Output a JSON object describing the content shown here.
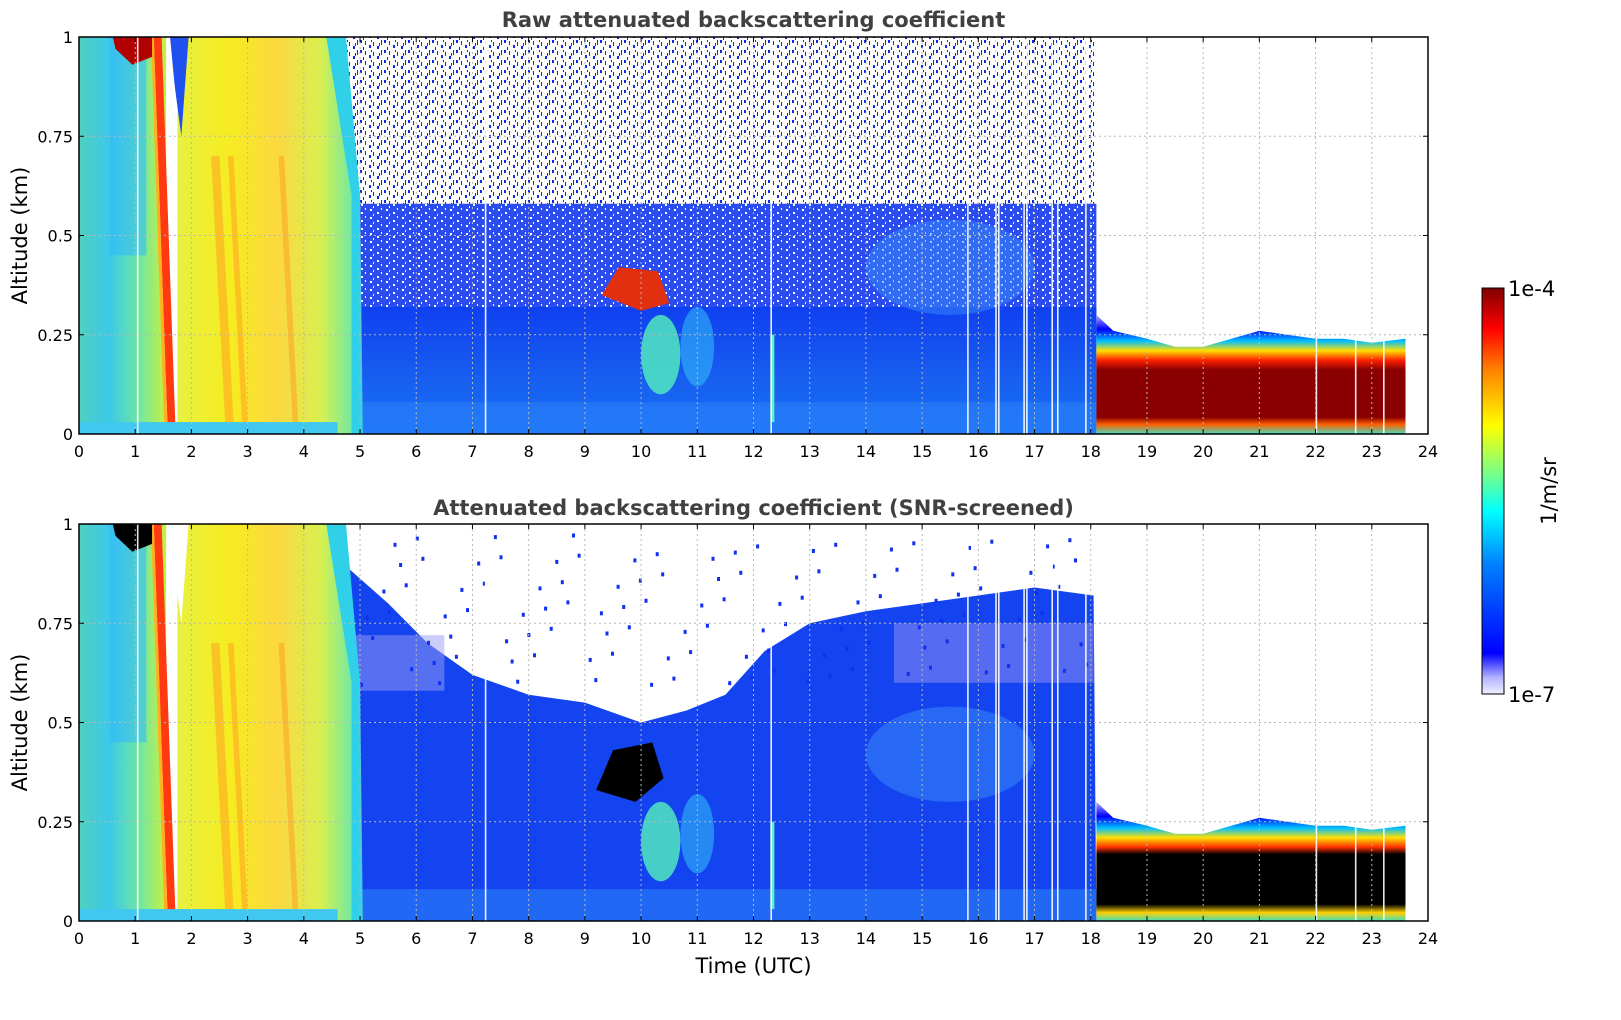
{
  "chart_data": [
    {
      "type": "heatmap",
      "title": "Raw attenuated backscattering coefficient",
      "xlabel": "",
      "ylabel": "Altitude (km)",
      "xlim": [
        0,
        24
      ],
      "ylim": [
        0,
        1
      ],
      "xticks": [
        "0",
        "1",
        "2",
        "3",
        "4",
        "5",
        "6",
        "7",
        "8",
        "9",
        "10",
        "11",
        "12",
        "13",
        "14",
        "15",
        "16",
        "17",
        "18",
        "19",
        "20",
        "21",
        "22",
        "23",
        "24"
      ],
      "yticks": [
        "0",
        "0.25",
        "0.5",
        "0.75",
        "1"
      ],
      "grid": true,
      "colorscale": "log",
      "clim": [
        "1e-7",
        "1e-4"
      ],
      "colorbar_label": "1/m/sr",
      "data_end_time": 23.6,
      "regions": [
        {
          "time_start": 0.0,
          "time_end": 1.5,
          "level": "cyan-green, yellow above 0.7 km"
        },
        {
          "time_start": 1.5,
          "time_end": 1.7,
          "level": "orange-red band descending from 1 km to 0 km"
        },
        {
          "time_start": 1.8,
          "time_end": 4.5,
          "level": "yellow-orange"
        },
        {
          "time_start": 4.5,
          "time_end": 18.1,
          "level": "blue below 0.5 km, noisy above"
        },
        {
          "time_start": 9.2,
          "time_end": 10.5,
          "level": "red feature at 0.35-0.42 km"
        },
        {
          "time_start": 18.1,
          "time_end": 23.6,
          "level": "dark red layer 0.05-0.22 km, no signal above 0.3 km"
        }
      ]
    },
    {
      "type": "heatmap",
      "title": "Attenuated backscattering coefficient (SNR-screened)",
      "xlabel": "Time (UTC)",
      "ylabel": "Altitude (km)",
      "xlim": [
        0,
        24
      ],
      "ylim": [
        0,
        1
      ],
      "xticks": [
        "0",
        "1",
        "2",
        "3",
        "4",
        "5",
        "6",
        "7",
        "8",
        "9",
        "10",
        "11",
        "12",
        "13",
        "14",
        "15",
        "16",
        "17",
        "18",
        "19",
        "20",
        "21",
        "22",
        "23",
        "24"
      ],
      "yticks": [
        "0",
        "0.25",
        "0.5",
        "0.75",
        "1"
      ],
      "grid": true,
      "colorscale": "log",
      "clim": [
        "1e-7",
        "1e-4"
      ],
      "colorbar_label": "1/m/sr",
      "data_end_time": 23.6,
      "regions": [
        {
          "time_start": 0.0,
          "time_end": 1.5,
          "level": "cyan-green, black patch above 0.95 km"
        },
        {
          "time_start": 1.5,
          "time_end": 1.7,
          "level": "orange-red band descending from 1 km to 0 km"
        },
        {
          "time_start": 1.8,
          "time_end": 4.5,
          "level": "yellow-orange"
        },
        {
          "time_start": 4.5,
          "time_end": 18.1,
          "level": "blue, screened (white) above noise ceiling"
        },
        {
          "time_start": 9.2,
          "time_end": 10.3,
          "level": "black (saturated) at 0.32-0.45 km"
        },
        {
          "time_start": 18.1,
          "time_end": 23.6,
          "level": "black layer 0.03-0.18 km, colored edges"
        }
      ]
    }
  ]
}
